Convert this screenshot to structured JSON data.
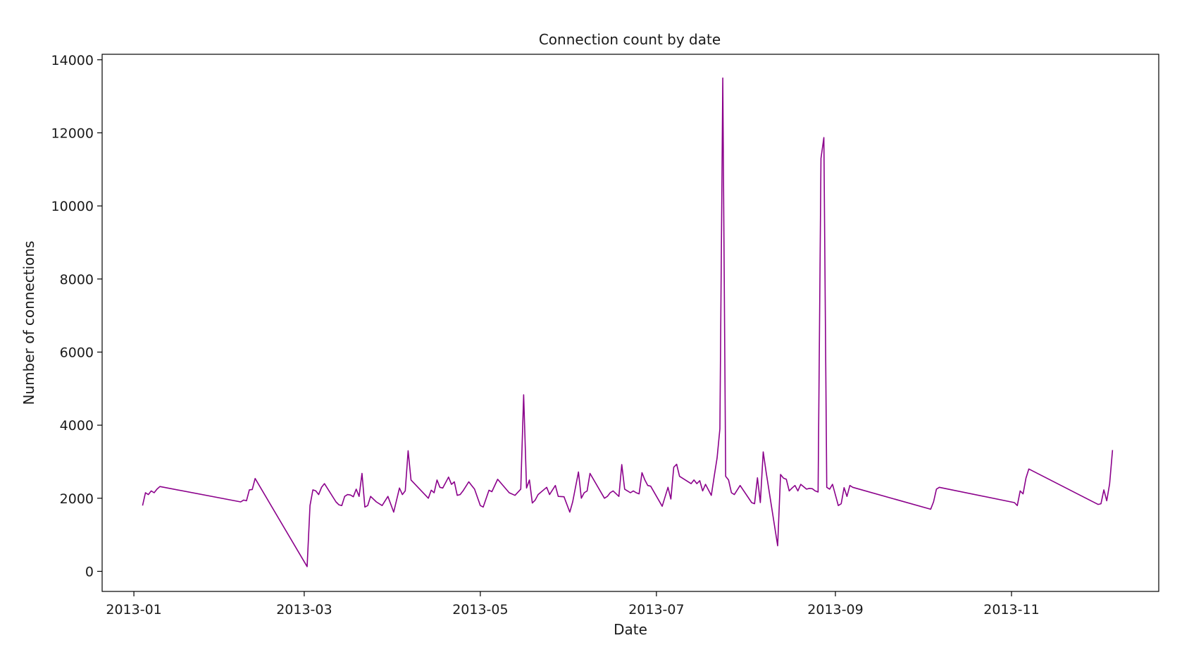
{
  "chart_data": {
    "type": "line",
    "title": "Connection count by date",
    "xlabel": "Date",
    "ylabel": "Number of connections",
    "line_color": "#8b008b",
    "grid": false,
    "x_tick_labels": [
      "2013-01",
      "2013-03",
      "2013-05",
      "2013-07",
      "2013-09",
      "2013-11"
    ],
    "x_tick_dates": [
      "2013-01-01",
      "2013-03-01",
      "2013-05-01",
      "2013-07-01",
      "2013-09-01",
      "2013-11-01"
    ],
    "xlim": [
      "2012-12-21",
      "2013-12-22"
    ],
    "yticks": [
      0,
      2000,
      4000,
      6000,
      8000,
      10000,
      12000,
      14000
    ],
    "ylim": [
      -550,
      14150
    ],
    "series": [
      {
        "x": [
          "2013-01-04",
          "2013-01-05",
          "2013-01-06",
          "2013-01-07",
          "2013-01-08",
          "2013-01-09",
          "2013-01-10",
          "2013-02-07",
          "2013-02-08",
          "2013-02-09",
          "2013-02-10",
          "2013-02-11",
          "2013-02-12",
          "2013-03-02",
          "2013-03-03",
          "2013-03-04",
          "2013-03-05",
          "2013-03-06",
          "2013-03-07",
          "2013-03-08",
          "2013-03-12",
          "2013-03-13",
          "2013-03-14",
          "2013-03-15",
          "2013-03-16",
          "2013-03-17",
          "2013-03-18",
          "2013-03-19",
          "2013-03-20",
          "2013-03-21",
          "2013-03-22",
          "2013-03-23",
          "2013-03-24",
          "2013-03-26",
          "2013-03-28",
          "2013-03-30",
          "2013-04-01",
          "2013-04-03",
          "2013-04-04",
          "2013-04-05",
          "2013-04-06",
          "2013-04-07",
          "2013-04-13",
          "2013-04-14",
          "2013-04-15",
          "2013-04-16",
          "2013-04-17",
          "2013-04-18",
          "2013-04-20",
          "2013-04-21",
          "2013-04-22",
          "2013-04-23",
          "2013-04-24",
          "2013-04-25",
          "2013-04-27",
          "2013-04-28",
          "2013-04-29",
          "2013-05-01",
          "2013-05-02",
          "2013-05-04",
          "2013-05-05",
          "2013-05-07",
          "2013-05-11",
          "2013-05-13",
          "2013-05-15",
          "2013-05-16",
          "2013-05-17",
          "2013-05-18",
          "2013-05-19",
          "2013-05-20",
          "2013-05-21",
          "2013-05-24",
          "2013-05-25",
          "2013-05-27",
          "2013-05-28",
          "2013-05-30",
          "2013-06-01",
          "2013-06-02",
          "2013-06-04",
          "2013-06-05",
          "2013-06-06",
          "2013-06-07",
          "2013-06-08",
          "2013-06-13",
          "2013-06-14",
          "2013-06-15",
          "2013-06-16",
          "2013-06-18",
          "2013-06-19",
          "2013-06-20",
          "2013-06-22",
          "2013-06-23",
          "2013-06-24",
          "2013-06-25",
          "2013-06-26",
          "2013-06-27",
          "2013-06-28",
          "2013-06-29",
          "2013-07-03",
          "2013-07-05",
          "2013-07-06",
          "2013-07-07",
          "2013-07-08",
          "2013-07-09",
          "2013-07-13",
          "2013-07-14",
          "2013-07-15",
          "2013-07-16",
          "2013-07-17",
          "2013-07-18",
          "2013-07-20",
          "2013-07-21",
          "2013-07-22",
          "2013-07-23",
          "2013-07-24",
          "2013-07-25",
          "2013-07-26",
          "2013-07-27",
          "2013-07-28",
          "2013-07-30",
          "2013-08-03",
          "2013-08-04",
          "2013-08-05",
          "2013-08-06",
          "2013-08-07",
          "2013-08-08",
          "2013-08-12",
          "2013-08-13",
          "2013-08-14",
          "2013-08-15",
          "2013-08-16",
          "2013-08-17",
          "2013-08-18",
          "2013-08-19",
          "2013-08-20",
          "2013-08-22",
          "2013-08-23",
          "2013-08-24",
          "2013-08-25",
          "2013-08-26",
          "2013-08-27",
          "2013-08-28",
          "2013-08-29",
          "2013-08-30",
          "2013-08-31",
          "2013-09-02",
          "2013-09-03",
          "2013-09-04",
          "2013-09-05",
          "2013-09-06",
          "2013-09-07",
          "2013-10-04",
          "2013-10-05",
          "2013-10-06",
          "2013-10-07",
          "2013-11-02",
          "2013-11-03",
          "2013-11-04",
          "2013-11-05",
          "2013-11-06",
          "2013-11-07",
          "2013-12-01",
          "2013-12-02",
          "2013-12-03",
          "2013-12-04",
          "2013-12-05",
          "2013-12-06"
        ],
        "y": [
          1800,
          2150,
          2100,
          2200,
          2150,
          2250,
          2320,
          1900,
          1950,
          1930,
          2230,
          2240,
          2540,
          130,
          1800,
          2230,
          2200,
          2100,
          2300,
          2400,
          1900,
          1820,
          1800,
          2050,
          2100,
          2090,
          2040,
          2250,
          2050,
          2680,
          1760,
          1800,
          2050,
          1900,
          1800,
          2050,
          1620,
          2280,
          2100,
          2200,
          3300,
          2500,
          2000,
          2220,
          2150,
          2500,
          2300,
          2280,
          2580,
          2380,
          2450,
          2080,
          2100,
          2200,
          2450,
          2350,
          2250,
          1800,
          1760,
          2220,
          2180,
          2520,
          2150,
          2080,
          2250,
          4830,
          2280,
          2500,
          1870,
          1950,
          2100,
          2300,
          2100,
          2350,
          2050,
          2040,
          1620,
          1900,
          2720,
          2000,
          2150,
          2200,
          2680,
          2000,
          2050,
          2150,
          2200,
          2050,
          2920,
          2250,
          2150,
          2200,
          2150,
          2120,
          2700,
          2500,
          2350,
          2330,
          1780,
          2300,
          1980,
          2850,
          2930,
          2600,
          2400,
          2500,
          2400,
          2480,
          2200,
          2380,
          2080,
          2600,
          3100,
          3900,
          13500,
          2600,
          2500,
          2150,
          2100,
          2350,
          1880,
          1850,
          2560,
          1880,
          3270,
          2720,
          700,
          2650,
          2550,
          2520,
          2200,
          2280,
          2350,
          2200,
          2380,
          2250,
          2270,
          2260,
          2200,
          2170,
          11300,
          11870,
          2300,
          2250,
          2380,
          1800,
          1850,
          2290,
          2050,
          2350,
          2300,
          1700,
          1900,
          2250,
          2300,
          1880,
          1800,
          2200,
          2120,
          2550,
          2800,
          1830,
          1850,
          2230,
          1930,
          2400,
          3320
        ]
      }
    ]
  }
}
